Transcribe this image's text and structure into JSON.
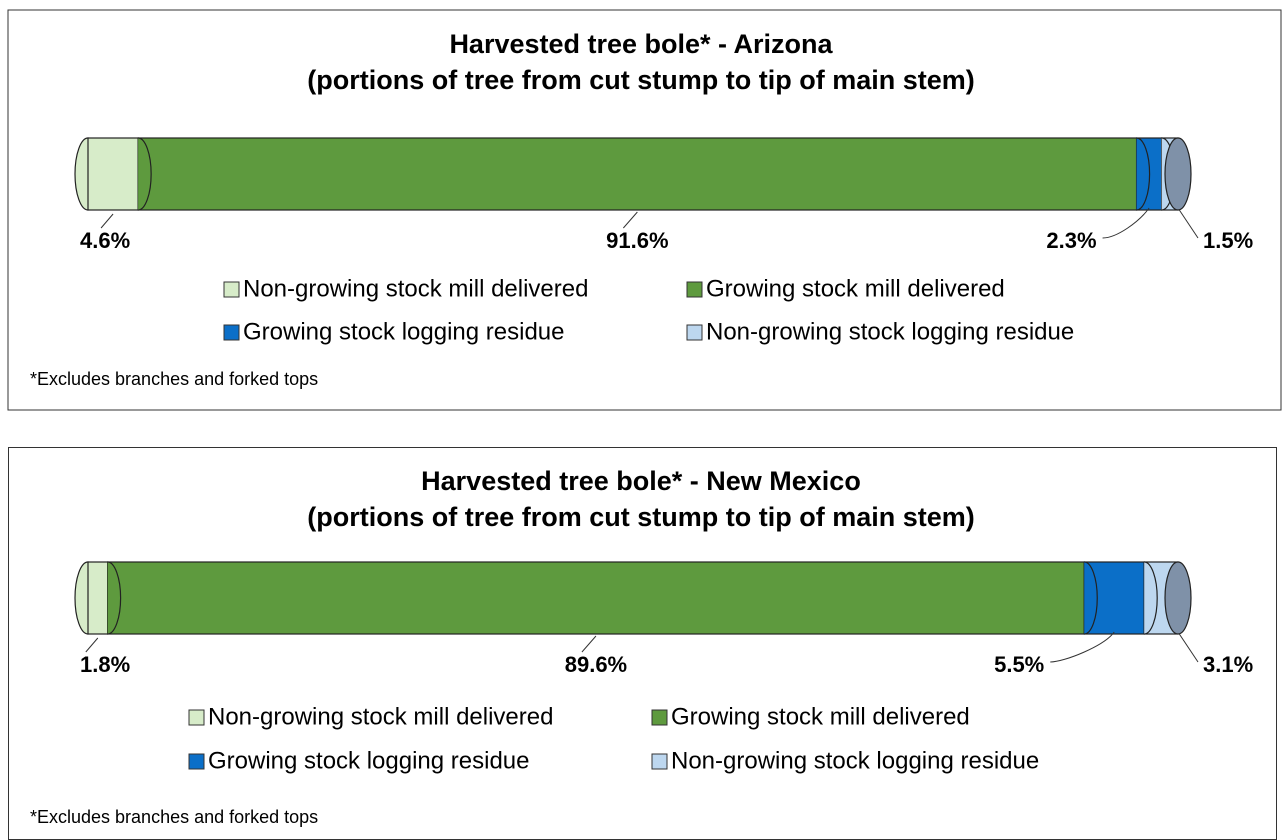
{
  "chart_data": [
    {
      "type": "bar",
      "stacked": true,
      "title": "Harvested tree bole*  - Arizona",
      "subtitle": "(portions of tree from cut stump to tip of main stem)",
      "xlim": [
        0,
        100
      ],
      "series": [
        {
          "name": "Non-growing stock mill delivered",
          "color": "#d7ecc9",
          "values": [
            4.6
          ],
          "value_labels": [
            "4.6%"
          ]
        },
        {
          "name": "Growing stock mill delivered",
          "color": "#5e9a3e",
          "values": [
            91.6
          ],
          "value_labels": [
            "91.6%"
          ]
        },
        {
          "name": "Growing stock logging residue",
          "color": "#0b6fc8",
          "values": [
            2.3
          ],
          "value_labels": [
            "2.3%"
          ]
        },
        {
          "name": "Non-growing stock logging residue",
          "color": "#bdd7ef",
          "values": [
            1.5
          ],
          "value_labels": [
            "1.5%"
          ]
        }
      ],
      "note": "*Excludes branches and forked tops"
    },
    {
      "type": "bar",
      "stacked": true,
      "title": "Harvested tree bole*  - New Mexico",
      "subtitle": "(portions of tree from cut stump to tip of main stem)",
      "xlim": [
        0,
        100
      ],
      "series": [
        {
          "name": "Non-growing stock mill delivered",
          "color": "#d7ecc9",
          "values": [
            1.8
          ],
          "value_labels": [
            "1.8%"
          ]
        },
        {
          "name": "Growing stock mill delivered",
          "color": "#5e9a3e",
          "values": [
            89.6
          ],
          "value_labels": [
            "89.6%"
          ]
        },
        {
          "name": "Growing stock logging residue",
          "color": "#0b6fc8",
          "values": [
            5.5
          ],
          "value_labels": [
            "5.5%"
          ]
        },
        {
          "name": "Non-growing stock logging residue",
          "color": "#bdd7ef",
          "values": [
            3.1
          ],
          "value_labels": [
            "3.1%"
          ]
        }
      ],
      "note": "*Excludes branches and forked tops"
    }
  ]
}
